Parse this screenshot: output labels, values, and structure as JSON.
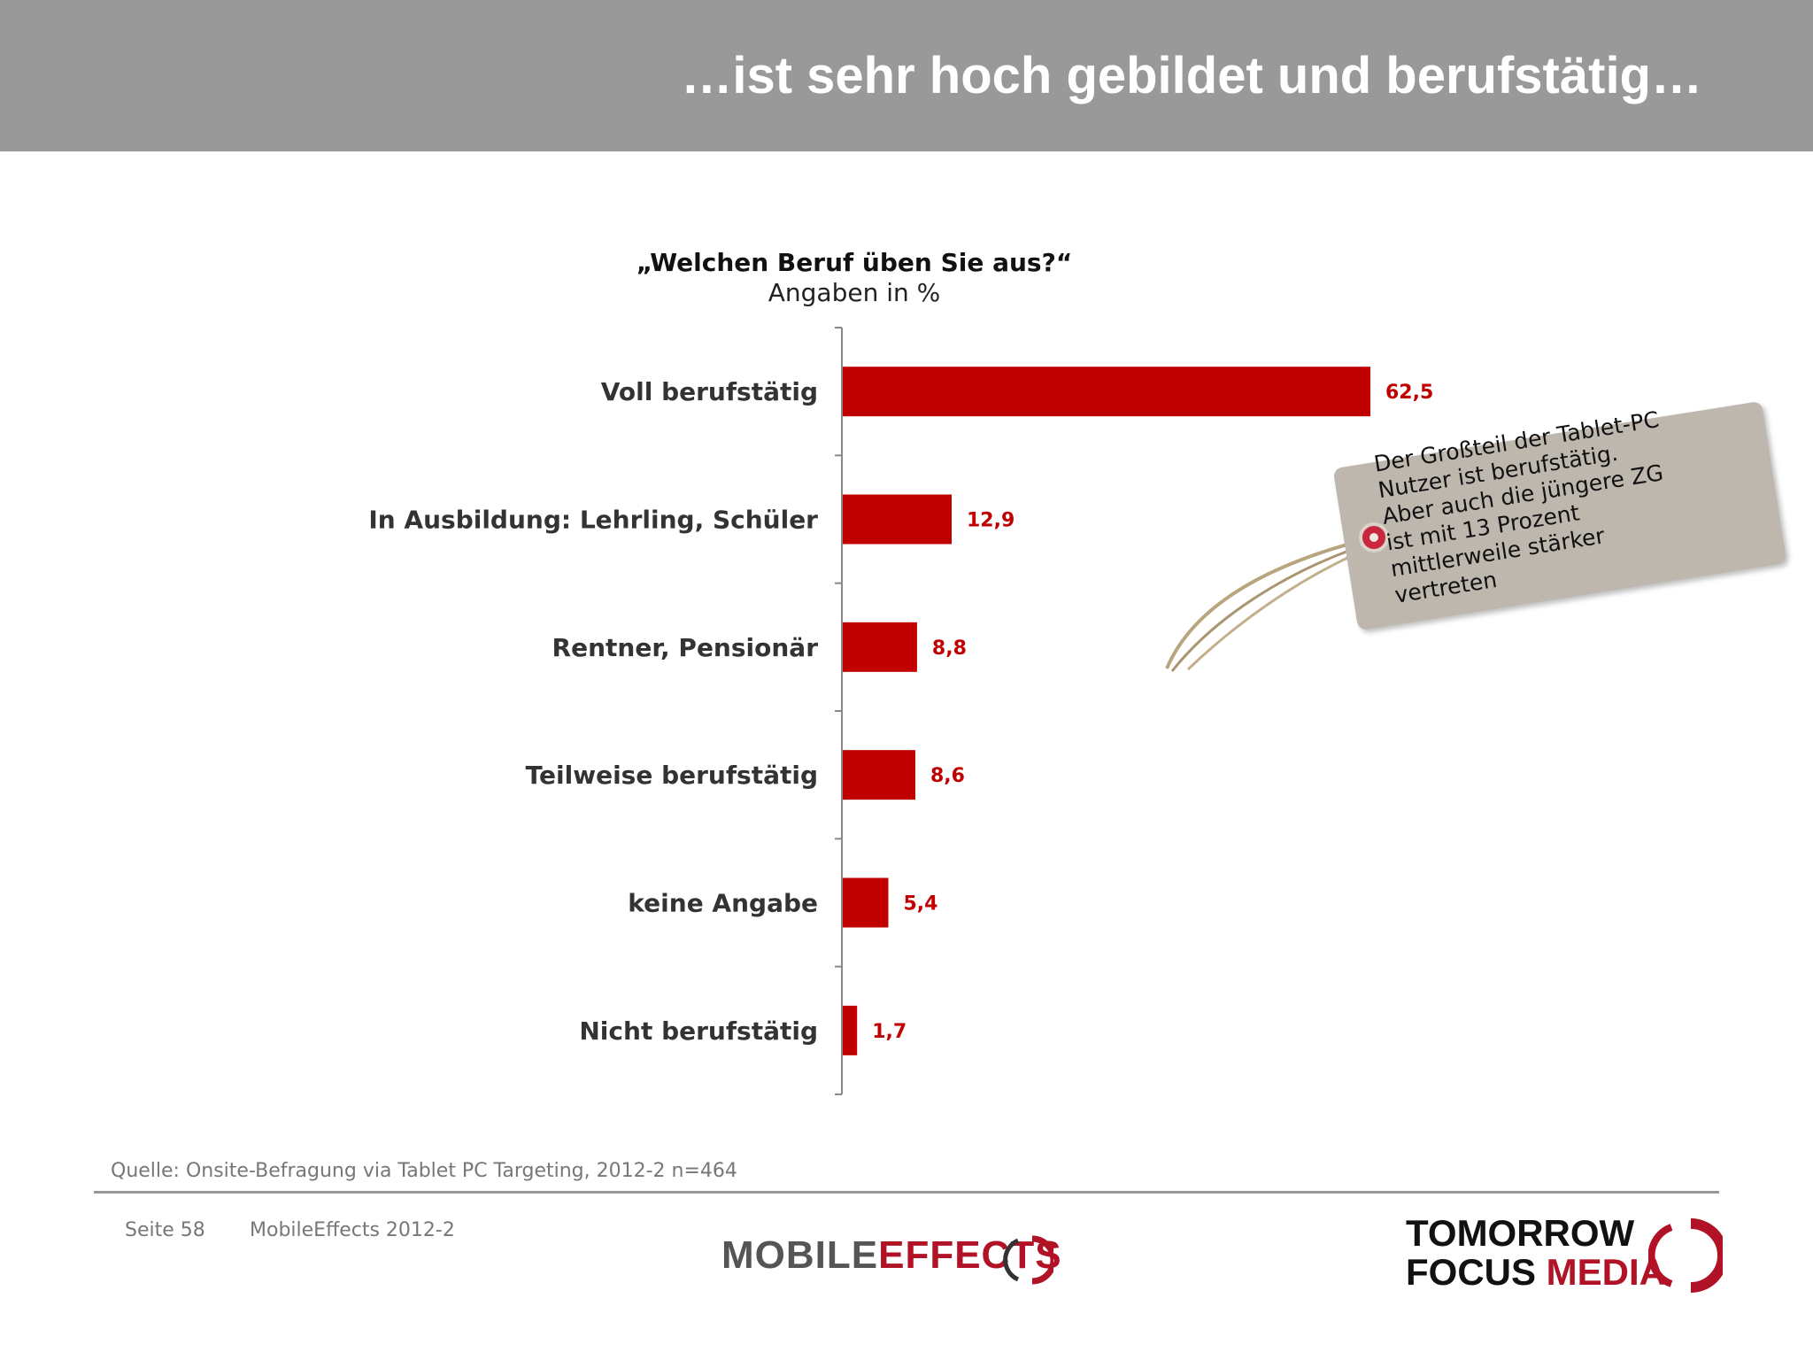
{
  "header": {
    "title": "…ist sehr hoch gebildet und berufstätig…",
    "background": "#999999"
  },
  "chart_data": {
    "type": "bar",
    "orientation": "horizontal",
    "title": "„Welchen Beruf üben Sie aus?“",
    "subtitle": "Angaben in %",
    "categories": [
      "Voll berufstätig",
      "In Ausbildung: Lehrling, Schüler",
      "Rentner, Pensionär",
      "Teilweise berufstätig",
      "keine Angabe",
      "Nicht berufstätig"
    ],
    "values": [
      62.5,
      12.9,
      8.8,
      8.6,
      5.4,
      1.7
    ],
    "value_labels": [
      "62,5",
      "12,9",
      "8,8",
      "8,6",
      "5,4",
      "1,7"
    ],
    "xlim": [
      0,
      70
    ],
    "grid": false,
    "bar_color": "#c00000",
    "label_color": "#c00000"
  },
  "callout": {
    "lines": [
      "Der Großteil der Tablet-PC",
      "Nutzer ist berufstätig.",
      "Aber auch die jüngere ZG",
      "ist mit 13 Prozent",
      "mittlerweile stärker",
      "vertreten"
    ],
    "tag_color": "#bdb7ae"
  },
  "footer": {
    "source": "Quelle: Onsite-Befragung via Tablet PC Targeting, 2012-2 n=464",
    "page": "Seite 58",
    "document": "MobileEffects 2012-2",
    "logo_mobile_part1": "MOBILE",
    "logo_mobile_part2": "EFFECTS",
    "logo_tfm_line1": "TOMORROW",
    "logo_tfm_line2a": "FOCUS",
    "logo_tfm_line2b": "MEDIA",
    "brand_red": "#b11226"
  }
}
